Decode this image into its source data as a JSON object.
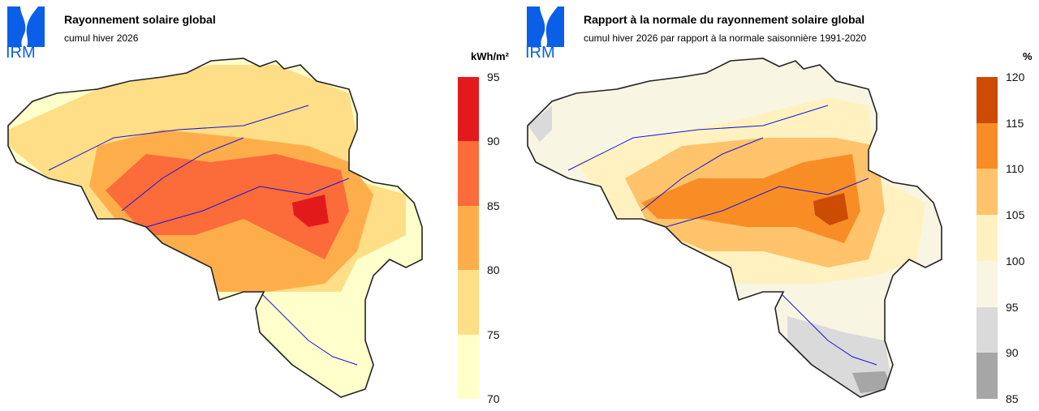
{
  "panels": [
    {
      "logo_text": "IRM",
      "title": "Rayonnement solaire global",
      "subtitle": "cumul hiver 2026",
      "unit": "kWh/m²",
      "legend": {
        "ticks": [
          "95",
          "90",
          "85",
          "80",
          "75",
          "70"
        ],
        "colors": [
          "#e31a1c",
          "#fc6b3a",
          "#fdae4b",
          "#fede86",
          "#ffffcc"
        ]
      },
      "base_color": "#ffffcc"
    },
    {
      "logo_text": "IRM",
      "title": "Rapport à la normale du rayonnement solaire global",
      "subtitle": "cumul hiver 2026 par rapport à la normale saisonnière 1991-2020",
      "unit": "%",
      "legend": {
        "ticks": [
          "120",
          "115",
          "110",
          "105",
          "100",
          "95",
          "90",
          "85"
        ],
        "colors": [
          "#cc4c02",
          "#f88d26",
          "#fec36b",
          "#fff2c0",
          "#f8f6e3",
          "#dadada",
          "#a6a6a6"
        ]
      },
      "base_color": "#f8f6e3"
    }
  ]
}
